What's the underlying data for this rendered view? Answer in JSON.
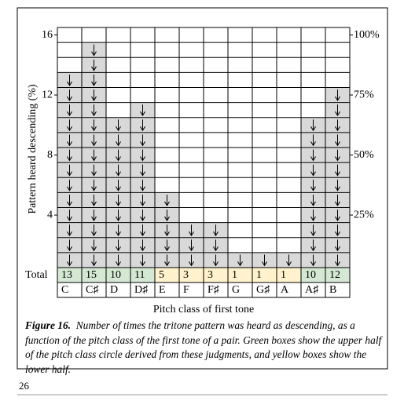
{
  "chart_data": {
    "type": "bar",
    "ylabel": "Pattern heard descending (%)",
    "xlabel": "Pitch class of first tone",
    "categories": [
      "C",
      "C♯",
      "D",
      "D♯",
      "E",
      "F",
      "F♯",
      "G",
      "G♯",
      "A",
      "A♯",
      "B"
    ],
    "values": [
      13,
      15,
      10,
      11,
      5,
      3,
      3,
      1,
      1,
      1,
      10,
      12
    ],
    "total_label": "Total",
    "bar_color": "#d9d9d9",
    "total_colors": [
      "#d5e8d4",
      "#d5e8d4",
      "#d5e8d4",
      "#d5e8d4",
      "#fff2cc",
      "#fff2cc",
      "#fff2cc",
      "#fff2cc",
      "#fff2cc",
      "#fff2cc",
      "#d5e8d4",
      "#d5e8d4"
    ],
    "ylim": [
      0,
      16
    ],
    "yticks": [
      4,
      8,
      12,
      16
    ],
    "y2lim": [
      0,
      100
    ],
    "y2ticks": [
      {
        "value": 25,
        "label": "25%"
      },
      {
        "value": 50,
        "label": "50%"
      },
      {
        "value": 75,
        "label": "75%"
      },
      {
        "value": 100,
        "label": "100%"
      }
    ]
  },
  "caption": {
    "label": "Figure 16.",
    "text": "Number of times the tritone pattern was heard as descending, as a function of the pitch class of the first tone of a pair.  Green boxes show the upper half of the pitch class circle derived from these judgments, and yellow boxes show the lower half."
  },
  "page_number": "26"
}
